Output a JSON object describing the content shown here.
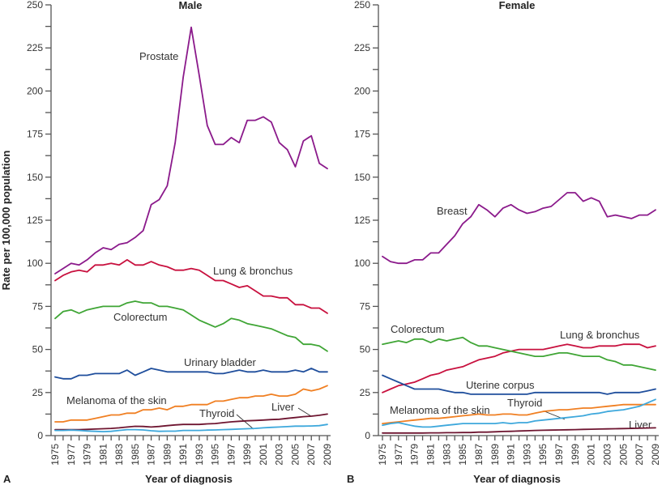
{
  "figure": {
    "ylabel": "Rate per 100,000 population",
    "xlabel": "Year of diagnosis"
  },
  "chart_data": [
    {
      "type": "line",
      "panel_letter": "A",
      "title": "Male",
      "xlabel": "Year of diagnosis",
      "ylabel": "Rate per 100,000 population",
      "ylim": [
        0,
        250
      ],
      "yticks": [
        0,
        25,
        50,
        75,
        100,
        125,
        150,
        175,
        200,
        225,
        250
      ],
      "xlim": [
        1975,
        2009
      ],
      "xtick_labels": [
        "1975",
        "1977",
        "1979",
        "1981",
        "1983",
        "1985",
        "1987",
        "1989",
        "1991",
        "1993",
        "1995",
        "1997",
        "1999",
        "2001",
        "2003",
        "2005",
        "2007",
        "2009"
      ],
      "grid": false,
      "legend": "inline labels",
      "x": [
        1975,
        1976,
        1977,
        1978,
        1979,
        1980,
        1981,
        1982,
        1983,
        1984,
        1985,
        1986,
        1987,
        1988,
        1989,
        1990,
        1991,
        1992,
        1993,
        1994,
        1995,
        1996,
        1997,
        1998,
        1999,
        2000,
        2001,
        2002,
        2003,
        2004,
        2005,
        2006,
        2007,
        2008,
        2009
      ],
      "series": [
        {
          "name": "Prostate",
          "color": "#8b1a8b",
          "values": [
            94,
            97,
            100,
            99,
            102,
            106,
            109,
            108,
            111,
            112,
            115,
            119,
            134,
            137,
            145,
            170,
            208,
            237,
            209,
            180,
            169,
            169,
            173,
            170,
            183,
            183,
            185,
            182,
            170,
            166,
            156,
            171,
            174,
            158,
            155
          ]
        },
        {
          "name": "Lung & bronchus",
          "color": "#c8103e",
          "values": [
            90,
            93,
            95,
            96,
            95,
            99,
            99,
            100,
            99,
            102,
            99,
            99,
            101,
            99,
            98,
            96,
            96,
            97,
            96,
            93,
            90,
            90,
            88,
            86,
            87,
            84,
            81,
            81,
            80,
            80,
            76,
            76,
            74,
            74,
            71
          ]
        },
        {
          "name": "Colorectum",
          "color": "#3fa535",
          "values": [
            68,
            72,
            73,
            71,
            73,
            74,
            75,
            75,
            75,
            77,
            78,
            77,
            77,
            75,
            75,
            74,
            73,
            70,
            67,
            65,
            63,
            65,
            68,
            67,
            65,
            64,
            63,
            62,
            60,
            58,
            57,
            53,
            53,
            52,
            49
          ]
        },
        {
          "name": "Urinary bladder",
          "color": "#1f4e9c",
          "values": [
            34,
            33,
            33,
            35,
            35,
            36,
            36,
            36,
            36,
            38,
            35,
            37,
            39,
            38,
            37,
            37,
            37,
            37,
            37,
            37,
            36,
            36,
            37,
            38,
            37,
            37,
            38,
            37,
            37,
            37,
            38,
            37,
            39,
            37,
            37
          ]
        },
        {
          "name": "Melanoma of the skin",
          "color": "#f07f22",
          "values": [
            8,
            8,
            9,
            9,
            9,
            10,
            11,
            12,
            12,
            13,
            13,
            15,
            15,
            16,
            15,
            17,
            17,
            18,
            18,
            18,
            20,
            20,
            21,
            22,
            22,
            23,
            23,
            24,
            23,
            23,
            24,
            27,
            26,
            27,
            29
          ]
        },
        {
          "name": "Liver",
          "color": "#6e1530",
          "values": [
            3.5,
            3.5,
            3.5,
            3.5,
            3.6,
            3.8,
            4,
            4.2,
            4.5,
            5,
            5.4,
            5.3,
            5,
            5.3,
            5.8,
            6.2,
            6.5,
            6.5,
            6.5,
            6.8,
            7,
            7.5,
            8,
            8.3,
            8.6,
            8.8,
            9,
            9.3,
            9.5,
            10,
            10.5,
            11,
            11.3,
            11.8,
            12.5
          ]
        },
        {
          "name": "Thyroid",
          "color": "#3ea8dc",
          "values": [
            3,
            3,
            3.2,
            3,
            2.7,
            2.5,
            2.3,
            2.5,
            3,
            3.5,
            3.5,
            3.3,
            2.8,
            2.5,
            2.6,
            2.6,
            3,
            3,
            3,
            3.2,
            3.3,
            3.5,
            3.6,
            3.8,
            4,
            4.2,
            4.5,
            4.8,
            5,
            5.2,
            5.5,
            5.5,
            5.6,
            5.8,
            6.5
          ]
        }
      ],
      "labels": [
        "Prostate",
        "Lung & bronchus",
        "Colorectum",
        "Urinary bladder",
        "Melanoma of the skin",
        "Thyroid",
        "Liver"
      ]
    },
    {
      "type": "line",
      "panel_letter": "B",
      "title": "Female",
      "xlabel": "Year of diagnosis",
      "ylabel": "Rate per 100,000 population",
      "ylim": [
        0,
        250
      ],
      "yticks": [
        0,
        25,
        50,
        75,
        100,
        125,
        150,
        175,
        200,
        225,
        250
      ],
      "xlim": [
        1975,
        2009
      ],
      "xtick_labels": [
        "1975",
        "1977",
        "1979",
        "1981",
        "1983",
        "1985",
        "1987",
        "1989",
        "1991",
        "1993",
        "1995",
        "1997",
        "1999",
        "2001",
        "2003",
        "2005",
        "2007",
        "2009"
      ],
      "grid": false,
      "legend": "inline labels",
      "x": [
        1975,
        1976,
        1977,
        1978,
        1979,
        1980,
        1981,
        1982,
        1983,
        1984,
        1985,
        1986,
        1987,
        1988,
        1989,
        1990,
        1991,
        1992,
        1993,
        1994,
        1995,
        1996,
        1997,
        1998,
        1999,
        2000,
        2001,
        2002,
        2003,
        2004,
        2005,
        2006,
        2007,
        2008,
        2009
      ],
      "series": [
        {
          "name": "Breast",
          "color": "#8b1a8b",
          "values": [
            104,
            101,
            100,
            100,
            102,
            102,
            106,
            106,
            111,
            116,
            123,
            127,
            134,
            131,
            127,
            132,
            134,
            131,
            129,
            130,
            132,
            133,
            137,
            141,
            141,
            136,
            138,
            136,
            127,
            128,
            127,
            126,
            128,
            128,
            131
          ]
        },
        {
          "name": "Lung & bronchus",
          "color": "#c8103e",
          "values": [
            25,
            27,
            29,
            30,
            31,
            33,
            35,
            36,
            38,
            39,
            40,
            42,
            44,
            45,
            46,
            48,
            49,
            50,
            50,
            50,
            50,
            51,
            52,
            53,
            52,
            51,
            51,
            52,
            52,
            52,
            53,
            53,
            53,
            51,
            52
          ]
        },
        {
          "name": "Colorectum",
          "color": "#3fa535",
          "values": [
            53,
            54,
            55,
            54,
            56,
            56,
            54,
            56,
            55,
            56,
            57,
            54,
            52,
            52,
            51,
            50,
            49,
            48,
            47,
            46,
            46,
            47,
            48,
            48,
            47,
            46,
            46,
            46,
            44,
            43,
            41,
            41,
            40,
            39,
            38
          ]
        },
        {
          "name": "Uterine corpus",
          "color": "#1f4e9c",
          "values": [
            35,
            33,
            31,
            29,
            27,
            27,
            27,
            27,
            26,
            25,
            25,
            24,
            24,
            24,
            24,
            24,
            24,
            24,
            24,
            25,
            25,
            25,
            25,
            25,
            25,
            25,
            25,
            25,
            24,
            25,
            25,
            25,
            25,
            26,
            27
          ]
        },
        {
          "name": "Melanoma of the skin",
          "color": "#f07f22",
          "values": [
            7,
            7.5,
            8,
            8.5,
            9,
            9.5,
            10,
            10,
            10.5,
            11,
            11.5,
            12,
            12.5,
            12,
            12,
            12.5,
            12.5,
            12,
            12,
            13,
            14,
            14.5,
            15,
            15,
            15.5,
            16,
            16,
            16.5,
            17,
            17.5,
            18,
            18,
            18,
            18,
            18
          ]
        },
        {
          "name": "Thyroid",
          "color": "#3ea8dc",
          "values": [
            6,
            7,
            7.5,
            6.5,
            5.5,
            5,
            5,
            5.5,
            6,
            6.5,
            7,
            7,
            7,
            7,
            7,
            7.5,
            7,
            7.5,
            7.5,
            8.5,
            9,
            9.5,
            10,
            10.5,
            11,
            11.5,
            12.5,
            13,
            14,
            14.5,
            15,
            16,
            17,
            19,
            21
          ]
        },
        {
          "name": "Liver",
          "color": "#6e1530",
          "values": [
            1.5,
            1.5,
            1.5,
            1.5,
            1.5,
            1.5,
            1.6,
            1.6,
            1.7,
            1.7,
            1.8,
            1.8,
            2,
            2,
            2.2,
            2.4,
            2.5,
            2.7,
            2.8,
            3,
            3.1,
            3.2,
            3.3,
            3.4,
            3.5,
            3.6,
            3.7,
            3.8,
            3.9,
            4,
            4.1,
            4.2,
            4.3,
            4.4,
            4.5
          ]
        }
      ],
      "labels": [
        "Breast",
        "Colorectum",
        "Lung & bronchus",
        "Uterine corpus",
        "Melanoma of the skin",
        "Thyroid",
        "Liver"
      ]
    }
  ]
}
